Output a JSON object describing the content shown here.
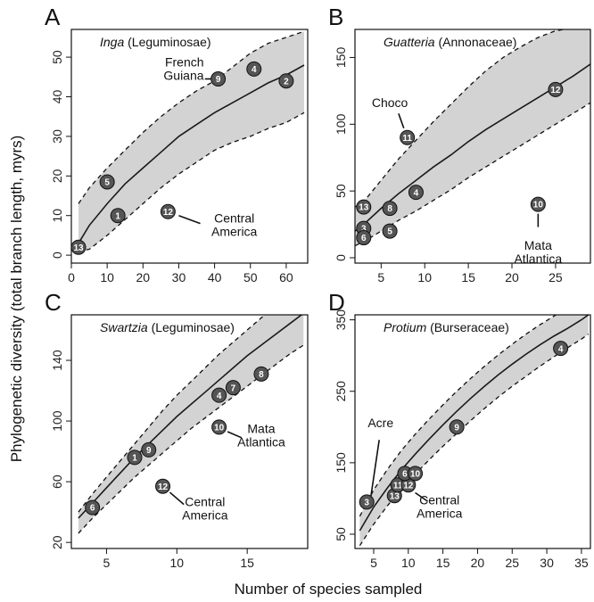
{
  "colors": {
    "envelope_fill": "#d3d3d3",
    "mean_line": "#1a1a1a",
    "marker_fill": "#555555",
    "marker_stroke": "#111111",
    "marker_text": "#ffffff"
  },
  "figure": {
    "xlabel": "Number of species sampled",
    "ylabel": "Phylogenetic diversity (total branch length, myrs)"
  },
  "chart_data": [
    {
      "type": "line",
      "panel": "A",
      "genus": "Inga",
      "family": " (Leguminosae)",
      "xlim": [
        0,
        66
      ],
      "ylim": [
        -2,
        57
      ],
      "xticks": [
        0,
        10,
        20,
        30,
        40,
        50,
        60
      ],
      "yticks": [
        0,
        10,
        20,
        30,
        40,
        50
      ],
      "series": [
        {
          "role": "mean",
          "x": [
            2,
            5,
            10,
            15,
            20,
            25,
            30,
            35,
            40,
            45,
            50,
            55,
            60,
            65
          ],
          "y": [
            3,
            7.5,
            13,
            18,
            22,
            26,
            30,
            33,
            36,
            38.5,
            41,
            43.5,
            45.5,
            48
          ]
        },
        {
          "role": "upper",
          "x": [
            2,
            5,
            10,
            15,
            20,
            25,
            30,
            35,
            40,
            45,
            50,
            55,
            60,
            65
          ],
          "y": [
            13,
            17,
            22,
            26.5,
            31,
            35,
            38.5,
            41.5,
            44,
            47.5,
            51,
            53.5,
            55,
            56.5
          ]
        },
        {
          "role": "lower",
          "x": [
            2,
            5,
            10,
            15,
            20,
            25,
            30,
            35,
            40,
            45,
            50,
            55,
            60,
            65
          ],
          "y": [
            1,
            1.5,
            5,
            9,
            13,
            17,
            20.5,
            23.5,
            26.5,
            28.5,
            30,
            32,
            33.5,
            36
          ]
        }
      ],
      "points": [
        {
          "label": "13",
          "x": 2,
          "y": 2
        },
        {
          "label": "1",
          "x": 13,
          "y": 10
        },
        {
          "label": "5",
          "x": 10,
          "y": 18.5
        },
        {
          "label": "12",
          "x": 27,
          "y": 11
        },
        {
          "label": "9",
          "x": 41,
          "y": 44.5
        },
        {
          "label": "4",
          "x": 51,
          "y": 47
        },
        {
          "label": "2",
          "x": 60,
          "y": 44
        }
      ],
      "annotations": [
        {
          "lines": [
            "French",
            "Guiana"
          ],
          "tx": 37,
          "ty": 47.7,
          "anchor": "end",
          "line": [
            [
              37.3,
              44.5
            ],
            [
              39.3,
              44.5
            ]
          ]
        },
        {
          "lines": [
            "Central",
            "America"
          ],
          "tx": 45.5,
          "ty": 8.3,
          "anchor": "middle",
          "line": [
            [
              30,
              10
            ],
            [
              36,
              8
            ]
          ]
        }
      ]
    },
    {
      "type": "line",
      "panel": "B",
      "genus": "Guatteria",
      "family": " (Annonaceae)",
      "xlim": [
        2,
        29
      ],
      "ylim": [
        -4,
        171
      ],
      "xticks": [
        5,
        10,
        15,
        20,
        25
      ],
      "yticks": [
        0,
        50,
        100,
        150
      ],
      "series": [
        {
          "role": "mean",
          "x": [
            2,
            3,
            5,
            7,
            9,
            11,
            13,
            15,
            17,
            19,
            21,
            23,
            25,
            27,
            29
          ],
          "y": [
            20,
            25,
            37,
            48,
            58,
            68,
            77,
            87,
            96,
            104,
            112,
            120,
            128,
            136,
            145
          ]
        },
        {
          "role": "upper",
          "x": [
            2,
            3,
            5,
            7,
            9,
            11,
            13,
            15,
            17,
            19,
            21,
            23,
            25,
            27,
            29
          ],
          "y": [
            38,
            42,
            58,
            74,
            88,
            102,
            115,
            128,
            140,
            150,
            158,
            165,
            170,
            172,
            173
          ]
        },
        {
          "role": "lower",
          "x": [
            2,
            3,
            5,
            7,
            9,
            11,
            13,
            15,
            17,
            19,
            21,
            23,
            25,
            27,
            29
          ],
          "y": [
            9,
            12,
            20,
            28,
            35,
            43,
            51,
            60,
            68,
            76,
            84,
            92,
            100,
            108,
            116
          ]
        }
      ],
      "points": [
        {
          "label": "13",
          "x": 3,
          "y": 38
        },
        {
          "label": "3",
          "x": 3,
          "y": 22
        },
        {
          "label": "6",
          "x": 3,
          "y": 15
        },
        {
          "label": "8",
          "x": 6,
          "y": 37
        },
        {
          "label": "5",
          "x": 6,
          "y": 20
        },
        {
          "label": "4",
          "x": 9,
          "y": 49
        },
        {
          "label": "11",
          "x": 8,
          "y": 90
        },
        {
          "label": "12",
          "x": 25,
          "y": 126
        },
        {
          "label": "10",
          "x": 23,
          "y": 40
        }
      ],
      "annotations": [
        {
          "lines": [
            "Choco"
          ],
          "tx": 6,
          "ty": 113,
          "anchor": "middle",
          "line": [
            [
              7,
              108
            ],
            [
              7.6,
              97
            ]
          ]
        },
        {
          "lines": [
            "Mata",
            "Atlantica"
          ],
          "tx": 23,
          "ty": 6,
          "anchor": "middle",
          "line": [
            [
              23,
              33
            ],
            [
              23,
              23
            ]
          ]
        }
      ]
    },
    {
      "type": "line",
      "panel": "C",
      "genus": "Swartzia",
      "family": " (Leguminosae)",
      "xlim": [
        2.5,
        19.3
      ],
      "ylim": [
        16,
        170
      ],
      "xticks": [
        5,
        10,
        15
      ],
      "yticks": [
        20,
        60,
        100,
        140
      ],
      "series": [
        {
          "role": "mean",
          "x": [
            3,
            4,
            5,
            6,
            7,
            8,
            9,
            10,
            11,
            12,
            13,
            14,
            15,
            16,
            17,
            18,
            19
          ],
          "y": [
            36,
            46,
            56,
            66,
            76,
            85,
            94,
            103,
            111,
            119,
            127,
            135,
            143,
            150,
            157,
            164,
            171
          ]
        },
        {
          "role": "upper",
          "x": [
            3,
            4,
            5,
            6,
            7,
            8,
            9,
            10,
            11,
            12,
            13,
            14,
            15,
            16,
            17,
            18,
            19
          ],
          "y": [
            40,
            52,
            63,
            74,
            85,
            96,
            107,
            117,
            126,
            135,
            144,
            152,
            160,
            168,
            176,
            184,
            192
          ]
        },
        {
          "role": "lower",
          "x": [
            3,
            4,
            5,
            6,
            7,
            8,
            9,
            10,
            11,
            12,
            13,
            14,
            15,
            16,
            17,
            18,
            19
          ],
          "y": [
            26,
            36,
            45,
            54,
            63,
            71,
            79,
            87,
            95,
            102,
            109,
            116,
            123,
            130,
            137,
            144,
            150
          ]
        }
      ],
      "points": [
        {
          "label": "6",
          "x": 4,
          "y": 43
        },
        {
          "label": "1",
          "x": 7,
          "y": 76
        },
        {
          "label": "9",
          "x": 8,
          "y": 81
        },
        {
          "label": "4",
          "x": 13,
          "y": 117
        },
        {
          "label": "7",
          "x": 14,
          "y": 122
        },
        {
          "label": "8",
          "x": 16,
          "y": 131
        },
        {
          "label": "10",
          "x": 13,
          "y": 96
        },
        {
          "label": "12",
          "x": 9,
          "y": 57
        }
      ],
      "annotations": [
        {
          "lines": [
            "Mata",
            "Atlantica"
          ],
          "tx": 16,
          "ty": 92,
          "anchor": "middle",
          "line": [
            [
              13.6,
              93
            ],
            [
              14.6,
              89
            ]
          ]
        },
        {
          "lines": [
            "Central",
            "America"
          ],
          "tx": 12,
          "ty": 44,
          "anchor": "middle",
          "line": [
            [
              9.5,
              53
            ],
            [
              10.5,
              45
            ]
          ]
        }
      ]
    },
    {
      "type": "line",
      "panel": "D",
      "genus": "Protium",
      "family": " (Burseraceae)",
      "xlim": [
        2.3,
        36.3
      ],
      "ylim": [
        30,
        357
      ],
      "xticks": [
        5,
        10,
        15,
        20,
        25,
        30,
        35
      ],
      "yticks": [
        50,
        150,
        250,
        350
      ],
      "series": [
        {
          "role": "mean",
          "x": [
            3,
            5,
            7,
            9,
            11,
            13,
            15,
            17,
            19,
            21,
            23,
            25,
            27,
            29,
            31,
            33,
            35,
            36
          ],
          "y": [
            55,
            88,
            115,
            140,
            162,
            183,
            203,
            222,
            240,
            257,
            273,
            288,
            302,
            315,
            327,
            338,
            350,
            357
          ]
        },
        {
          "role": "upper",
          "x": [
            3,
            5,
            7,
            9,
            11,
            13,
            15,
            17,
            19,
            21,
            23,
            25,
            27,
            29,
            31,
            33,
            35,
            36
          ],
          "y": [
            75,
            112,
            141,
            167,
            190,
            211,
            231,
            250,
            268,
            285,
            301,
            316,
            330,
            343,
            355,
            366,
            377,
            383
          ]
        },
        {
          "role": "lower",
          "x": [
            3,
            5,
            7,
            9,
            11,
            13,
            15,
            17,
            19,
            21,
            23,
            25,
            27,
            29,
            31,
            33,
            35,
            36
          ],
          "y": [
            34,
            64,
            90,
            113,
            134,
            154,
            173,
            191,
            209,
            226,
            242,
            257,
            271,
            285,
            298,
            311,
            323,
            330
          ]
        }
      ],
      "points": [
        {
          "label": "3",
          "x": 4,
          "y": 95
        },
        {
          "label": "13",
          "x": 8,
          "y": 104
        },
        {
          "label": "11",
          "x": 8.5,
          "y": 119
        },
        {
          "label": "12",
          "x": 10,
          "y": 119
        },
        {
          "label": "6",
          "x": 9.5,
          "y": 135
        },
        {
          "label": "10",
          "x": 11,
          "y": 135
        },
        {
          "label": "9",
          "x": 17,
          "y": 200
        },
        {
          "label": "4",
          "x": 32,
          "y": 310
        }
      ],
      "annotations": [
        {
          "lines": [
            "Acre"
          ],
          "tx": 6,
          "ty": 200,
          "anchor": "middle",
          "line": [
            [
              5.8,
              182
            ],
            [
              4.6,
              103
            ]
          ]
        },
        {
          "lines": [
            "Central",
            "America"
          ],
          "tx": 14.5,
          "ty": 92,
          "anchor": "middle",
          "line": [
            [
              11,
              108
            ],
            [
              12.8,
              96
            ]
          ]
        }
      ]
    }
  ]
}
